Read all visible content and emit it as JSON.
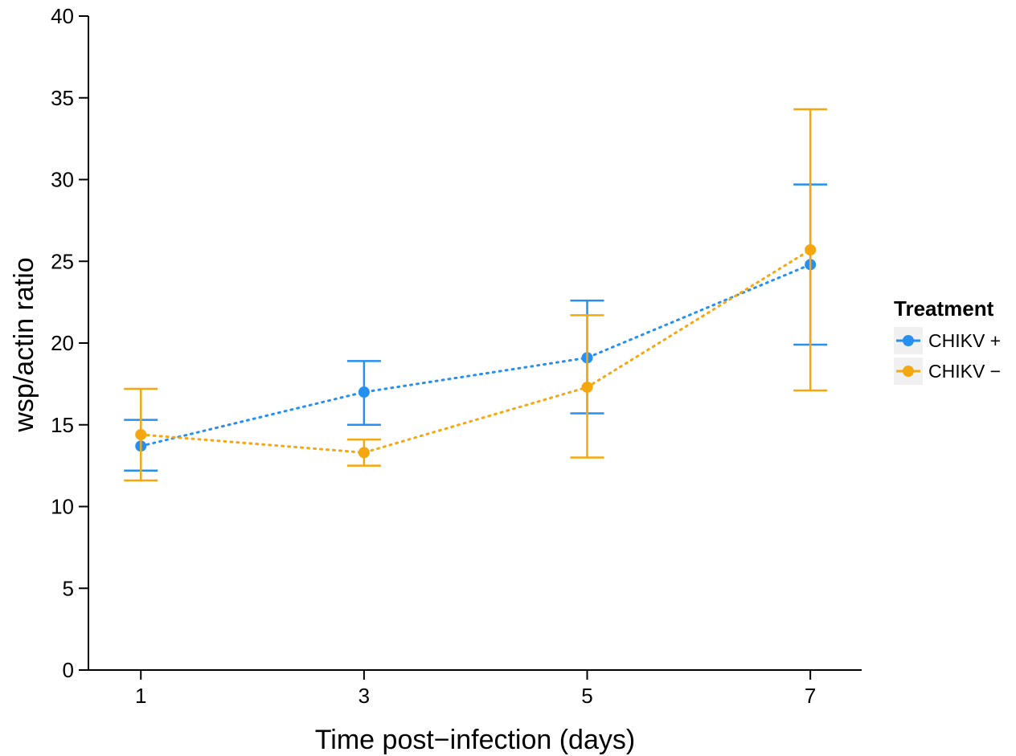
{
  "chart_data": {
    "type": "line",
    "xlabel": "Time post−infection (days)",
    "ylabel": "wsp/actin ratio",
    "x": [
      1,
      3,
      5,
      7
    ],
    "xticks": [
      "1",
      "3",
      "5",
      "7"
    ],
    "xlim": [
      0.53,
      7.46
    ],
    "ylim": [
      0,
      40
    ],
    "yticks": [
      "0",
      "5",
      "10",
      "15",
      "20",
      "25",
      "30",
      "35",
      "40"
    ],
    "grid": false,
    "line_style": "dotted",
    "error_bars": true,
    "legend": {
      "title": "Treatment",
      "position": "right"
    },
    "series": [
      {
        "name": "CHIKV +",
        "color": "#2590f0",
        "values": [
          13.7,
          17.0,
          19.1,
          24.8
        ],
        "lower": [
          12.2,
          15.0,
          15.7,
          19.9
        ],
        "upper": [
          15.3,
          18.9,
          22.6,
          29.7
        ]
      },
      {
        "name": "CHIKV −",
        "color": "#f5a70f",
        "values": [
          14.4,
          13.3,
          17.3,
          25.7
        ],
        "lower": [
          11.6,
          12.5,
          13.0,
          17.1
        ],
        "upper": [
          17.2,
          14.1,
          21.7,
          34.3
        ]
      }
    ]
  }
}
